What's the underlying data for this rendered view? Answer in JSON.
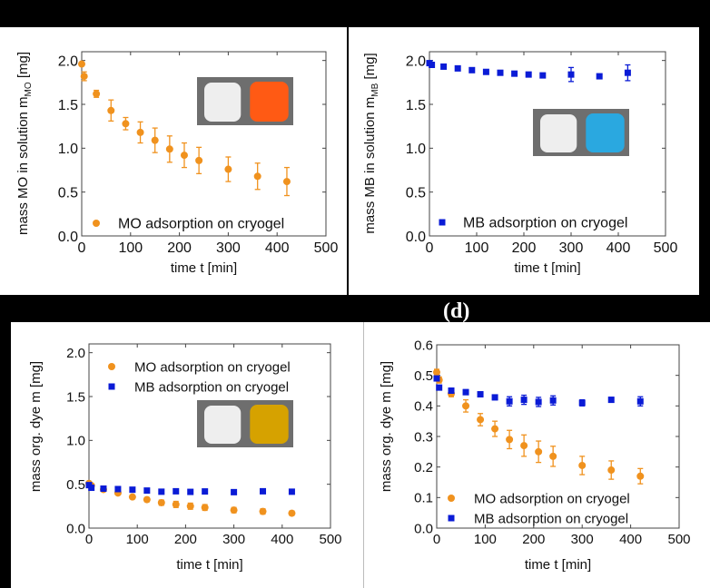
{
  "figure_label": "(d)",
  "colors": {
    "mo": "#f0921e",
    "mb": "#0a1bd6"
  },
  "chart_data": [
    {
      "type": "scatter",
      "panel": "a",
      "xlabel": "time t [min]",
      "ylabel": {
        "main": "mass MO in solution m",
        "sub": "MO",
        "unit": " [mg]"
      },
      "xlim": [
        0,
        500
      ],
      "ylim": [
        0,
        2.1
      ],
      "xticks": [
        "0",
        "100",
        "200",
        "300",
        "400",
        "500"
      ],
      "yticks": [
        "0.0",
        "0.5",
        "1.0",
        "1.5",
        "2.0"
      ],
      "inset": "white cryogel and orange MO-loaded cryogel",
      "series": [
        {
          "name": "MO adsorption on cryogel",
          "marker": "circle",
          "color": "#f0921e",
          "x": [
            0,
            5,
            30,
            60,
            90,
            120,
            150,
            180,
            210,
            240,
            300,
            360,
            420
          ],
          "y": [
            1.96,
            1.82,
            1.62,
            1.43,
            1.28,
            1.18,
            1.09,
            0.99,
            0.92,
            0.86,
            0.76,
            0.68,
            0.62
          ],
          "err": [
            0.01,
            0.05,
            0.04,
            0.12,
            0.07,
            0.12,
            0.14,
            0.15,
            0.14,
            0.15,
            0.14,
            0.15,
            0.16
          ]
        }
      ]
    },
    {
      "type": "scatter",
      "panel": "b",
      "xlabel": "time t [min]",
      "ylabel": {
        "main": "mass MB in solution m",
        "sub": "MB",
        "unit": " [mg]"
      },
      "xlim": [
        0,
        500
      ],
      "ylim": [
        0,
        2.1
      ],
      "xticks": [
        "0",
        "100",
        "200",
        "300",
        "400",
        "500"
      ],
      "yticks": [
        "0.0",
        "0.5",
        "1.0",
        "1.5",
        "2.0"
      ],
      "inset": "white cryogel and blue MB-loaded cryogel",
      "series": [
        {
          "name": "MB adsorption on cryogel",
          "marker": "square",
          "color": "#0a1bd6",
          "x": [
            0,
            5,
            30,
            60,
            90,
            120,
            150,
            180,
            210,
            240,
            300,
            360,
            420
          ],
          "y": [
            1.97,
            1.95,
            1.93,
            1.91,
            1.89,
            1.87,
            1.86,
            1.85,
            1.84,
            1.83,
            1.84,
            1.82,
            1.86
          ],
          "err": [
            0.02,
            0.01,
            0.01,
            0.01,
            0.01,
            0.01,
            0.01,
            0.01,
            0.01,
            0.01,
            0.08,
            0.02,
            0.09
          ]
        }
      ]
    },
    {
      "type": "scatter",
      "panel": "c",
      "xlabel": "time t [min]",
      "ylabel": {
        "main": "mass org. dye m [mg]",
        "sub": "",
        "unit": ""
      },
      "xlim": [
        0,
        500
      ],
      "ylim": [
        0,
        2.1
      ],
      "xticks": [
        "0",
        "100",
        "200",
        "300",
        "400",
        "500"
      ],
      "yticks": [
        "0.0",
        "0.5",
        "1.0",
        "1.5",
        "2.0"
      ],
      "inset": "white cryogel and yellow cryogel",
      "series": [
        {
          "name": "MO adsorption on cryogel",
          "marker": "circle",
          "color": "#f0921e",
          "x": [
            0,
            5,
            30,
            60,
            90,
            120,
            150,
            180,
            210,
            240,
            300,
            360,
            420
          ],
          "y": [
            0.51,
            0.485,
            0.44,
            0.4,
            0.355,
            0.325,
            0.29,
            0.27,
            0.25,
            0.235,
            0.205,
            0.19,
            0.17
          ],
          "err": [
            0.01,
            0.01,
            0.01,
            0.02,
            0.02,
            0.025,
            0.03,
            0.035,
            0.035,
            0.033,
            0.03,
            0.03,
            0.025
          ]
        },
        {
          "name": "MB adsorption on cryogel",
          "marker": "square",
          "color": "#0a1bd6",
          "x": [
            0,
            5,
            30,
            60,
            90,
            120,
            150,
            180,
            210,
            240,
            300,
            360,
            420
          ],
          "y": [
            0.49,
            0.46,
            0.45,
            0.445,
            0.438,
            0.428,
            0.415,
            0.42,
            0.413,
            0.418,
            0.41,
            0.42,
            0.415
          ],
          "err": [
            0.005,
            0.005,
            0.005,
            0.008,
            0.008,
            0.008,
            0.015,
            0.015,
            0.015,
            0.015,
            0.01,
            0.008,
            0.015
          ]
        }
      ]
    },
    {
      "type": "scatter",
      "panel": "d",
      "xlabel": "time t [min]",
      "ylabel": {
        "main": "mass org. dye m [mg]",
        "sub": "",
        "unit": ""
      },
      "xlim": [
        0,
        500
      ],
      "ylim": [
        0,
        0.6
      ],
      "xticks": [
        "0",
        "100",
        "200",
        "300",
        "400",
        "500"
      ],
      "yticks": [
        "0.0",
        "0.1",
        "0.2",
        "0.3",
        "0.4",
        "0.5",
        "0.6"
      ],
      "series": [
        {
          "name": "MO adsorption on cryogel",
          "marker": "circle",
          "color": "#f0921e",
          "x": [
            0,
            5,
            30,
            60,
            90,
            120,
            150,
            180,
            210,
            240,
            300,
            360,
            420
          ],
          "y": [
            0.51,
            0.485,
            0.44,
            0.4,
            0.355,
            0.325,
            0.29,
            0.27,
            0.25,
            0.235,
            0.205,
            0.19,
            0.17
          ],
          "err": [
            0.01,
            0.01,
            0.01,
            0.02,
            0.02,
            0.025,
            0.03,
            0.035,
            0.035,
            0.033,
            0.03,
            0.03,
            0.025
          ]
        },
        {
          "name": "MB adsorption on cryogel",
          "marker": "square",
          "color": "#0a1bd6",
          "x": [
            0,
            5,
            30,
            60,
            90,
            120,
            150,
            180,
            210,
            240,
            300,
            360,
            420
          ],
          "y": [
            0.49,
            0.46,
            0.45,
            0.445,
            0.438,
            0.428,
            0.415,
            0.42,
            0.413,
            0.418,
            0.41,
            0.42,
            0.415
          ],
          "err": [
            0.005,
            0.005,
            0.005,
            0.008,
            0.008,
            0.008,
            0.015,
            0.015,
            0.015,
            0.015,
            0.01,
            0.008,
            0.015
          ]
        }
      ]
    }
  ]
}
